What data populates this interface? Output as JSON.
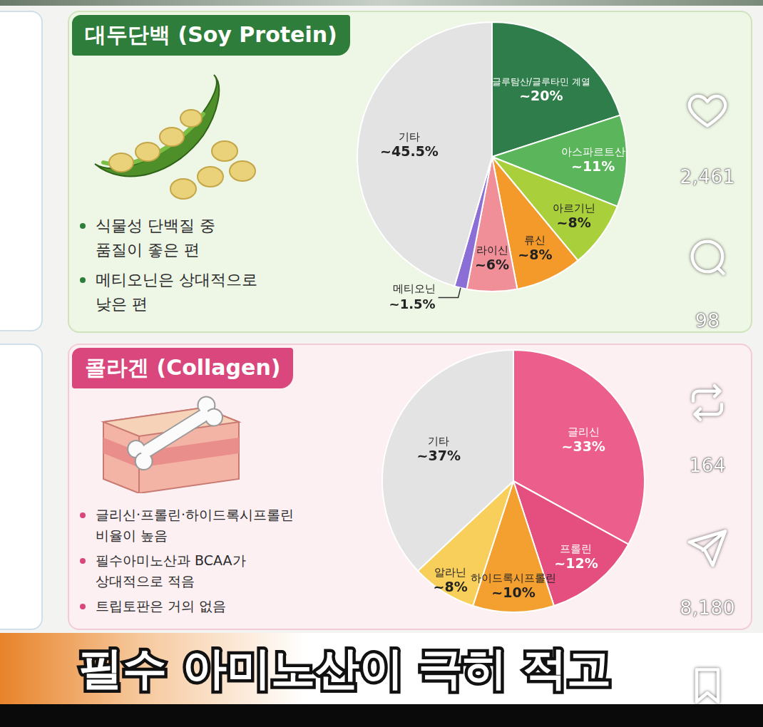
{
  "chart_data": [
    {
      "type": "pie",
      "title": "대두단백 (Soy Protein)",
      "categories": [
        "글루탐산/글루타민 계열",
        "아스파르트산",
        "아르기닌",
        "류신",
        "라이신",
        "메티오닌",
        "기타"
      ],
      "values": [
        20,
        11,
        8,
        8,
        6,
        1.5,
        45.5
      ],
      "value_labels": [
        "~20%",
        "~11%",
        "~8%",
        "~8%",
        "~6%",
        "~1.5%",
        "~45.5%"
      ],
      "colors": [
        "#2f7d4a",
        "#5bb55a",
        "#a9cf3b",
        "#f39a2b",
        "#f08f98",
        "#8b6fd6",
        "#e3e3e3"
      ],
      "data_labels": true,
      "annotations": [
        [
          "식물성 단백질 중",
          "품질이 좋은 편"
        ],
        [
          "메티오닌은 상대적으로",
          "낮은 편"
        ]
      ]
    },
    {
      "type": "pie",
      "title": "콜라겐 (Collagen)",
      "categories": [
        "글리신",
        "프롤린",
        "하이드록시프롤린",
        "알라닌",
        "기타"
      ],
      "values": [
        33,
        12,
        10,
        8,
        37
      ],
      "value_labels": [
        "~33%",
        "~12%",
        "~10%",
        "~8%",
        "~37%"
      ],
      "colors": [
        "#ec5f8c",
        "#e44f7f",
        "#f4a030",
        "#f8cf5a",
        "#e3e3e3"
      ],
      "data_labels": true,
      "annotations": [
        [
          "글리신·프롤린·하이드록시프롤린",
          "비율이 높음"
        ],
        [
          "필수아미노산과 BCAA가",
          "상대적으로 적음"
        ],
        [
          "트립토판은 거의 없음"
        ]
      ]
    }
  ],
  "caption": "필수 아미노산이 극히 적고",
  "social_counts": [
    "2,461",
    "98",
    "164",
    "8,180"
  ]
}
